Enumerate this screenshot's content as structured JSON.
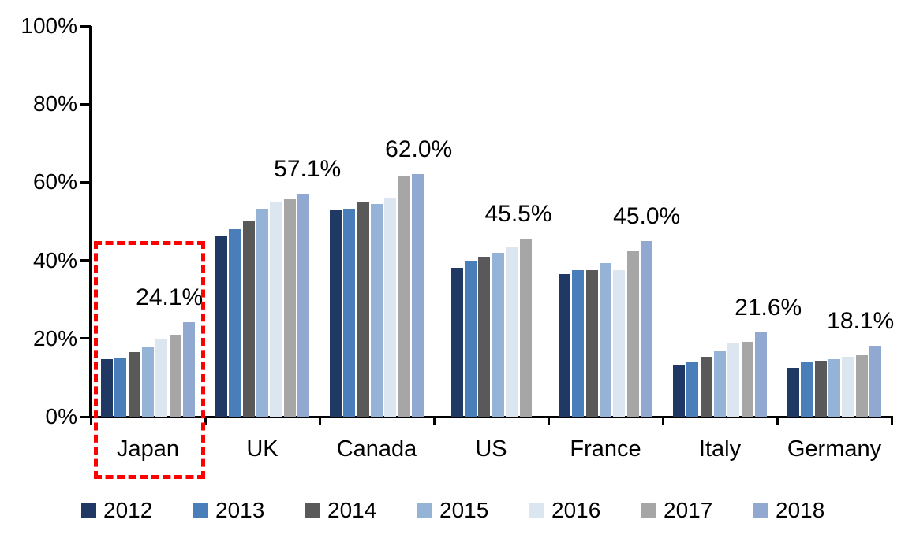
{
  "chart_data": {
    "type": "bar",
    "title": "",
    "xlabel": "",
    "ylabel": "",
    "ylim": [
      0,
      100
    ],
    "ytick_labels": [
      "0%",
      "20%",
      "40%",
      "60%",
      "80%",
      "100%"
    ],
    "ytick_values": [
      0,
      20,
      40,
      60,
      80,
      100
    ],
    "grid": false,
    "legend_position": "bottom",
    "categories": [
      "Japan",
      "UK",
      "Canada",
      "US",
      "France",
      "Italy",
      "Germany"
    ],
    "series": [
      {
        "name": "2012",
        "color": "#1F3864",
        "values": [
          14.8,
          46.3,
          53.0,
          38.1,
          36.4,
          13.2,
          12.4
        ]
      },
      {
        "name": "2013",
        "color": "#4A7EBB",
        "values": [
          15.0,
          47.9,
          53.3,
          40.0,
          37.6,
          14.1,
          13.9
        ]
      },
      {
        "name": "2014",
        "color": "#595959",
        "values": [
          16.5,
          50.0,
          54.8,
          40.9,
          37.6,
          15.3,
          14.4
        ]
      },
      {
        "name": "2015",
        "color": "#95B3D7",
        "values": [
          18.0,
          53.2,
          54.5,
          41.9,
          39.3,
          16.7,
          14.7
        ]
      },
      {
        "name": "2016",
        "color": "#DCE6F1",
        "values": [
          20.0,
          55.0,
          56.1,
          43.5,
          37.4,
          18.9,
          15.4
        ]
      },
      {
        "name": "2017",
        "color": "#A6A6A6",
        "values": [
          21.0,
          55.9,
          61.7,
          45.5,
          42.3,
          19.1,
          15.8
        ]
      },
      {
        "name": "2018",
        "color": "#91A8D0",
        "values": [
          24.1,
          57.1,
          62.0,
          null,
          45.0,
          21.6,
          18.1
        ]
      }
    ],
    "data_labels": [
      "24.1%",
      "57.1%",
      "62.0%",
      "45.5%",
      "45.0%",
      "21.6%",
      "18.1%"
    ],
    "annotations": {
      "highlight": {
        "category": "Japan",
        "style": "red-dashed-rectangle",
        "color": "#FF0000"
      }
    }
  }
}
